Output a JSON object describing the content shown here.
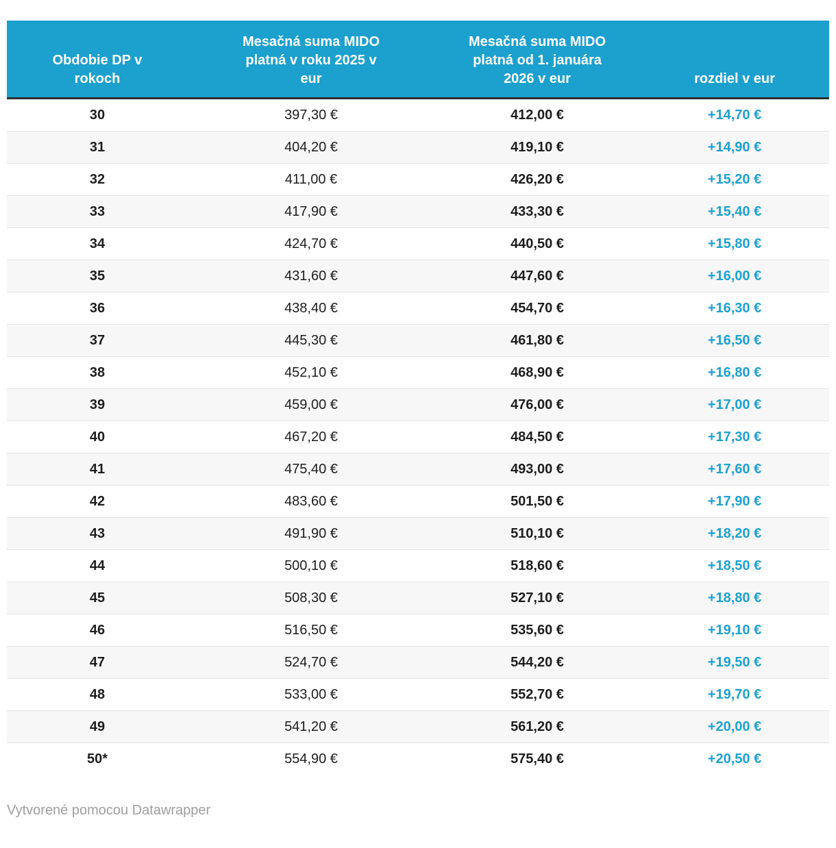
{
  "chart_data": {
    "type": "table",
    "title": "",
    "columns": [
      {
        "id": "obdobie-dp",
        "label_lines": [
          "Obdobie DP v",
          "rokoch"
        ]
      },
      {
        "id": "suma-2025",
        "label_lines": [
          "Mesačná suma MIDO",
          "platná v roku 2025 v",
          "eur"
        ]
      },
      {
        "id": "suma-2026",
        "label_lines": [
          "Mesačná suma MIDO",
          "platná od 1. januára",
          "2026 v eur"
        ]
      },
      {
        "id": "rozdiel",
        "label_lines": [
          "rozdiel v eur"
        ]
      }
    ],
    "rows": [
      [
        "30",
        "397,30 €",
        "412,00 €",
        "+14,70 €"
      ],
      [
        "31",
        "404,20 €",
        "419,10 €",
        "+14,90 €"
      ],
      [
        "32",
        "411,00 €",
        "426,20 €",
        "+15,20 €"
      ],
      [
        "33",
        "417,90 €",
        "433,30 €",
        "+15,40 €"
      ],
      [
        "34",
        "424,70 €",
        "440,50 €",
        "+15,80 €"
      ],
      [
        "35",
        "431,60 €",
        "447,60 €",
        "+16,00 €"
      ],
      [
        "36",
        "438,40 €",
        "454,70 €",
        "+16,30 €"
      ],
      [
        "37",
        "445,30 €",
        "461,80 €",
        "+16,50 €"
      ],
      [
        "38",
        "452,10 €",
        "468,90 €",
        "+16,80 €"
      ],
      [
        "39",
        "459,00 €",
        "476,00 €",
        "+17,00 €"
      ],
      [
        "40",
        "467,20 €",
        "484,50 €",
        "+17,30 €"
      ],
      [
        "41",
        "475,40 €",
        "493,00 €",
        "+17,60 €"
      ],
      [
        "42",
        "483,60 €",
        "501,50 €",
        "+17,90 €"
      ],
      [
        "43",
        "491,90 €",
        "510,10 €",
        "+18,20 €"
      ],
      [
        "44",
        "500,10 €",
        "518,60 €",
        "+18,50 €"
      ],
      [
        "45",
        "508,30 €",
        "527,10 €",
        "+18,80 €"
      ],
      [
        "46",
        "516,50 €",
        "535,60 €",
        "+19,10 €"
      ],
      [
        "47",
        "524,70 €",
        "544,20 €",
        "+19,50 €"
      ],
      [
        "48",
        "533,00 €",
        "552,70 €",
        "+19,70 €"
      ],
      [
        "49",
        "541,20 €",
        "561,20 €",
        "+20,00 €"
      ],
      [
        "50*",
        "554,90 €",
        "575,40 €",
        "+20,50 €"
      ]
    ],
    "layout_hints": {
      "zebra_striping": true,
      "header_position": "top",
      "column_alignment": [
        "center",
        "center",
        "center",
        "center"
      ]
    }
  },
  "footer": {
    "attribution": "Vytvorené pomocou Datawrapper"
  },
  "colors": {
    "header_background": "#1ca0ce",
    "header_text": "#ffffff",
    "header_bottom_border": "#2e2e2e",
    "row_stripe": "#f7f7f7",
    "row_separator": "#e3e3e3",
    "body_text": "#1d1d1d",
    "difference_text": "#1da1d2",
    "attribution_text": "#9e9e9e"
  }
}
